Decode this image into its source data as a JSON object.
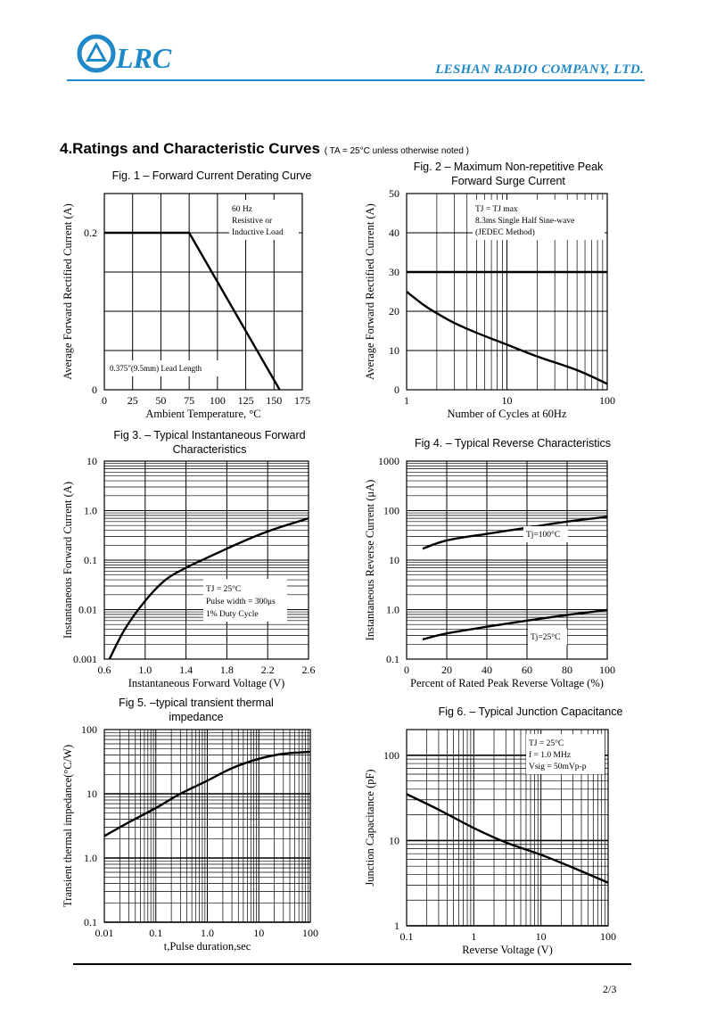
{
  "header": {
    "logo_text": "LRC",
    "company": "LESHAN RADIO COMPANY, LTD.",
    "brand_color": "#1e88c8"
  },
  "section": {
    "title": "4.Ratings and Characteristic Curves",
    "condition": "( TA = 25°C unless otherwise noted )"
  },
  "footer": {
    "page": "2/3"
  },
  "chart_data": [
    {
      "type": "line",
      "title": "Fig. 1 – Forward Current Derating Curve",
      "xlabel": "Ambient Temperature, °C",
      "ylabel": "Average Forward Rectified Current (A)",
      "xlim": [
        0,
        175
      ],
      "ylim": [
        0,
        0.25
      ],
      "grid": true,
      "x_ticks": [
        "0",
        "25",
        "50",
        "75",
        "100",
        "125",
        "150",
        "175"
      ],
      "y_ticks": [
        "0",
        "0.2"
      ],
      "annotations": [
        "60 Hz",
        "Resistive or",
        "Inductive Load",
        "0.375\"(9.5mm) Lead Length"
      ],
      "series": [
        {
          "x": [
            0,
            75,
            155
          ],
          "y": [
            0.2,
            0.2,
            0
          ]
        }
      ]
    },
    {
      "type": "line",
      "title": "Fig. 2 – Maximum Non-repetitive Peak Forward Surge Current",
      "xlabel": "Number of Cycles at 60Hz",
      "ylabel": "Average Forward Rectified Current (A)",
      "x_scale": "log",
      "xlim": [
        1,
        100
      ],
      "ylim": [
        0,
        50
      ],
      "grid": true,
      "x_ticks": [
        "1",
        "10",
        "100"
      ],
      "y_ticks": [
        "0",
        "10",
        "20",
        "30",
        "40",
        "50"
      ],
      "annotations": [
        "TJ = TJ max",
        "8.3ms Single Half Sine-wave",
        "(JEDEC Method)"
      ],
      "series": [
        {
          "x": [
            1,
            1.5,
            2,
            3,
            5,
            10,
            20,
            50,
            100
          ],
          "y": [
            25,
            21.5,
            19.5,
            17,
            14.5,
            11.5,
            8.5,
            5,
            1.5
          ]
        },
        {
          "x": [
            1,
            100
          ],
          "y": [
            30,
            30
          ]
        }
      ]
    },
    {
      "type": "line",
      "title": "Fig 3. – Typical Instantaneous Forward Characteristics",
      "xlabel": "Instantaneous Forward Voltage (V)",
      "ylabel": "Instantaneous Forward Current (A)",
      "y_scale": "log",
      "xlim": [
        0.6,
        2.6
      ],
      "ylim": [
        0.001,
        10
      ],
      "grid": true,
      "x_ticks": [
        "0.6",
        "1.0",
        "1.4",
        "1.8",
        "2.2",
        "2.6"
      ],
      "y_ticks": [
        "0.001",
        "0.01",
        "0.1",
        "1.0",
        "10"
      ],
      "annotations": [
        "TJ = 25°C",
        "Pulse width = 300μs",
        "1% Duty Cycle"
      ],
      "series": [
        {
          "x": [
            0.65,
            0.8,
            1.0,
            1.2,
            1.4,
            1.6,
            1.8,
            2.0,
            2.2,
            2.4,
            2.6
          ],
          "y": [
            0.001,
            0.004,
            0.015,
            0.04,
            0.07,
            0.11,
            0.17,
            0.26,
            0.38,
            0.52,
            0.7
          ]
        }
      ]
    },
    {
      "type": "line",
      "title": "Fig 4. – Typical Reverse Characteristics",
      "xlabel": "Percent of Rated Peak Reverse Voltage (%)",
      "ylabel": "Instantaneous Reverse Current (μA)",
      "y_scale": "log",
      "xlim": [
        0,
        100
      ],
      "ylim": [
        0.1,
        1000
      ],
      "grid": true,
      "x_ticks": [
        "0",
        "20",
        "40",
        "60",
        "80",
        "100"
      ],
      "y_ticks": [
        "0.1",
        "1.0",
        "10",
        "100",
        "1000"
      ],
      "annotations": [
        "Tj=100°C",
        "Tj=25°C"
      ],
      "series": [
        {
          "x": [
            8,
            20,
            40,
            60,
            80,
            100
          ],
          "y": [
            17,
            25,
            34,
            45,
            60,
            75
          ]
        },
        {
          "x": [
            8,
            20,
            40,
            60,
            80,
            100
          ],
          "y": [
            0.25,
            0.33,
            0.45,
            0.6,
            0.78,
            0.98
          ]
        }
      ]
    },
    {
      "type": "line",
      "title": "Fig 5. –typical transient thermal impedance",
      "xlabel": "t,Pulse duration,sec",
      "ylabel": "Transient thermal impedance(°C/W)",
      "x_scale": "log",
      "y_scale": "log",
      "xlim": [
        0.01,
        100
      ],
      "ylim": [
        0.1,
        100
      ],
      "grid": true,
      "x_ticks": [
        "0.01",
        "0.1",
        "1.0",
        "10",
        "100"
      ],
      "y_ticks": [
        "0.1",
        "1.0",
        "10",
        "100"
      ],
      "series": [
        {
          "x": [
            0.01,
            0.03,
            0.1,
            0.3,
            1,
            3,
            10,
            30,
            100
          ],
          "y": [
            2.2,
            3.6,
            6,
            10,
            16,
            25,
            35,
            42,
            45
          ]
        }
      ]
    },
    {
      "type": "line",
      "title": "Fig 6. – Typical Junction Capacitance",
      "xlabel": "Reverse Voltage (V)",
      "ylabel": "Junction Capacitance (pF)",
      "x_scale": "log",
      "y_scale": "log",
      "xlim": [
        0.1,
        100
      ],
      "ylim": [
        1,
        200
      ],
      "grid": true,
      "x_ticks": [
        "0.1",
        "1",
        "10",
        "100"
      ],
      "y_ticks": [
        "1",
        "10",
        "100"
      ],
      "annotations": [
        "TJ = 25°C",
        "f = 1.0 MHz",
        "Vsig = 50mVp-p"
      ],
      "series": [
        {
          "x": [
            0.1,
            0.3,
            1,
            3,
            10,
            30,
            100
          ],
          "y": [
            35,
            23,
            14,
            9.5,
            6.8,
            4.8,
            3.2
          ]
        }
      ]
    }
  ]
}
